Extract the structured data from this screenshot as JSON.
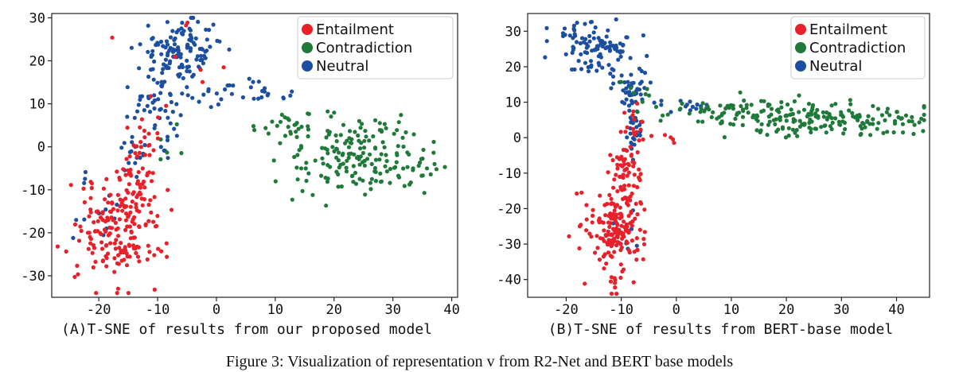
{
  "figure_caption": "Figure 3: Visualization of representation v from R2-Net and BERT base models",
  "colors": {
    "Entailment": "#e8202a",
    "Contradiction": "#1f7a3a",
    "Neutral": "#1d4fa0"
  },
  "chart_data": [
    {
      "type": "scatter",
      "caption": "(A)T-SNE of results from our proposed model",
      "title": "",
      "xlabel": "",
      "ylabel": "",
      "xlim": [
        -28,
        41
      ],
      "ylim": [
        -35,
        31
      ],
      "xticks": [
        -20,
        -10,
        0,
        10,
        20,
        30,
        40
      ],
      "yticks": [
        30,
        20,
        10,
        0,
        -10,
        -20,
        -30
      ],
      "legend": [
        "Entailment",
        "Contradiction",
        "Neutral"
      ],
      "legend_position": "top-right",
      "grid": false,
      "series": [
        {
          "name": "Entailment",
          "clusters": [
            {
              "cx": -17,
              "cy": -20,
              "sx": 4.0,
              "sy": 6.0,
              "n": 170
            },
            {
              "cx": -14,
              "cy": -8,
              "sx": 2.0,
              "sy": 5.0,
              "n": 50
            },
            {
              "cx": -12,
              "cy": 3,
              "sx": 1.5,
              "sy": 3.0,
              "n": 15
            },
            {
              "cx": -6,
              "cy": 18,
              "sx": 4.0,
              "sy": 8.0,
              "n": 10
            }
          ]
        },
        {
          "name": "Contradiction",
          "clusters": [
            {
              "cx": 24,
              "cy": -2,
              "sx": 6.0,
              "sy": 4.5,
              "n": 170
            },
            {
              "cx": 13,
              "cy": 5,
              "sx": 3.0,
              "sy": 2.0,
              "n": 25
            },
            {
              "cx": 35,
              "cy": -5,
              "sx": 1.5,
              "sy": 1.0,
              "n": 12
            },
            {
              "cx": -9,
              "cy": 0,
              "sx": 1.5,
              "sy": 3.0,
              "n": 5
            }
          ]
        },
        {
          "name": "Neutral",
          "clusters": [
            {
              "cx": -6,
              "cy": 22,
              "sx": 3.5,
              "sy": 4.0,
              "n": 130
            },
            {
              "cx": -10,
              "cy": 10,
              "sx": 2.0,
              "sy": 4.0,
              "n": 45
            },
            {
              "cx": 4,
              "cy": 12,
              "sx": 4.0,
              "sy": 1.5,
              "n": 30
            },
            {
              "cx": -14,
              "cy": -2,
              "sx": 1.5,
              "sy": 4.0,
              "n": 20
            },
            {
              "cx": -20,
              "cy": -15,
              "sx": 4.0,
              "sy": 7.0,
              "n": 12
            }
          ]
        }
      ]
    },
    {
      "type": "scatter",
      "caption": "(B)T-SNE of results from BERT-base model",
      "title": "",
      "xlabel": "",
      "ylabel": "",
      "xlim": [
        -27,
        46
      ],
      "ylim": [
        -45,
        35
      ],
      "xticks": [
        -20,
        -10,
        0,
        10,
        20,
        30,
        40
      ],
      "yticks": [
        30,
        20,
        10,
        0,
        -10,
        -20,
        -30,
        -40
      ],
      "legend": [
        "Entailment",
        "Contradiction",
        "Neutral"
      ],
      "legend_position": "top-right",
      "grid": false,
      "series": [
        {
          "name": "Entailment",
          "clusters": [
            {
              "cx": -11,
              "cy": -27,
              "sx": 2.5,
              "sy": 6.5,
              "n": 170
            },
            {
              "cx": -9,
              "cy": -10,
              "sx": 1.5,
              "sy": 5.0,
              "n": 60
            },
            {
              "cx": -8,
              "cy": 5,
              "sx": 1.0,
              "sy": 4.0,
              "n": 15
            },
            {
              "cx": -3,
              "cy": 0,
              "sx": 1.5,
              "sy": 1.0,
              "n": 5
            }
          ]
        },
        {
          "name": "Contradiction",
          "clusters": [
            {
              "cx": 27,
              "cy": 5,
              "sx": 10.0,
              "sy": 2.5,
              "n": 200
            },
            {
              "cx": 7,
              "cy": 8,
              "sx": 5.0,
              "sy": 1.5,
              "n": 40
            },
            {
              "cx": -6,
              "cy": 12,
              "sx": 2.0,
              "sy": 1.5,
              "n": 8
            }
          ]
        },
        {
          "name": "Neutral",
          "clusters": [
            {
              "cx": -15,
              "cy": 26,
              "sx": 3.5,
              "sy": 4.0,
              "n": 100
            },
            {
              "cx": -9,
              "cy": 15,
              "sx": 2.0,
              "sy": 3.0,
              "n": 45
            },
            {
              "cx": -7.5,
              "cy": 3,
              "sx": 0.8,
              "sy": 4.0,
              "n": 30
            },
            {
              "cx": 2,
              "cy": 9,
              "sx": 3.0,
              "sy": 1.0,
              "n": 15
            },
            {
              "cx": -10,
              "cy": -28,
              "sx": 1.5,
              "sy": 3.0,
              "n": 6
            }
          ]
        }
      ]
    }
  ]
}
